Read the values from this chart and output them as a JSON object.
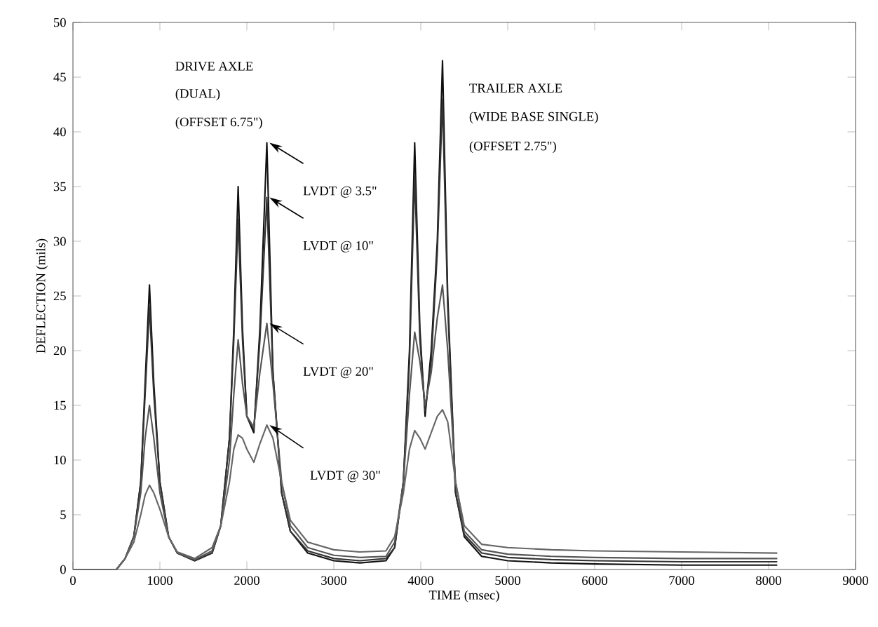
{
  "chart_data": {
    "type": "line",
    "xlabel": "TIME (msec)",
    "ylabel": "DEFLECTION (mils)",
    "annotations": [
      "DRIVE AXLE",
      "(DUAL)",
      "(OFFSET 6.75\")",
      "TRAILER AXLE",
      "(WIDE BASE SINGLE)",
      "(OFFSET 2.75\")"
    ],
    "x": [
      0,
      500,
      600,
      700,
      780,
      830,
      880,
      930,
      1000,
      1100,
      1200,
      1400,
      1600,
      1700,
      1800,
      1850,
      1900,
      1950,
      2000,
      2080,
      2150,
      2230,
      2300,
      2400,
      2500,
      2700,
      3000,
      3300,
      3600,
      3700,
      3800,
      3870,
      3930,
      3990,
      4050,
      4120,
      4190,
      4250,
      4310,
      4400,
      4500,
      4700,
      5000,
      5500,
      6000,
      7000,
      8100
    ],
    "series": [
      {
        "name": "LVDT @ 3.5\"",
        "color": "#111111",
        "values": [
          0,
          0,
          1,
          3,
          8,
          17,
          26,
          17,
          8,
          3,
          1.5,
          0.8,
          1.5,
          4,
          12,
          22,
          35,
          22,
          14,
          12.5,
          22,
          39,
          18,
          7,
          3.5,
          1.5,
          0.8,
          0.6,
          0.8,
          2,
          8,
          20,
          39,
          22,
          14,
          20,
          30,
          46.5,
          25,
          7,
          3,
          1.2,
          0.8,
          0.6,
          0.5,
          0.4,
          0.4
        ]
      },
      {
        "name": "LVDT @ 10\"",
        "color": "#333333",
        "values": [
          0,
          0,
          1,
          3,
          8,
          16,
          24,
          16,
          8,
          3,
          1.5,
          0.8,
          1.5,
          4,
          12,
          21,
          32,
          21,
          14,
          12.8,
          21,
          34,
          18,
          7,
          3.5,
          1.7,
          1,
          0.8,
          1,
          2,
          8,
          19,
          36,
          21,
          14.5,
          19,
          29,
          43,
          24,
          7,
          3.2,
          1.5,
          1.1,
          0.9,
          0.8,
          0.7,
          0.7
        ]
      },
      {
        "name": "LVDT @ 20\"",
        "color": "#555555",
        "values": [
          0,
          0,
          1,
          3,
          7,
          12,
          15,
          12,
          7,
          3,
          1.5,
          0.9,
          1.7,
          4,
          10,
          16,
          21,
          17,
          14,
          13,
          18,
          22.5,
          17,
          8,
          4,
          2,
          1.3,
          1.1,
          1.2,
          2.5,
          8,
          16,
          21.7,
          19,
          15,
          18,
          23,
          26,
          20,
          8,
          3.5,
          1.8,
          1.4,
          1.2,
          1.1,
          1,
          1
        ]
      },
      {
        "name": "LVDT @ 30\"",
        "color": "#666666",
        "values": [
          0,
          0,
          1,
          2.5,
          5,
          6.8,
          7.7,
          7,
          5.5,
          3,
          1.6,
          1,
          2,
          4,
          8,
          11,
          12.3,
          12,
          11,
          9.8,
          11.5,
          13.2,
          12,
          8,
          4.5,
          2.5,
          1.8,
          1.6,
          1.7,
          3,
          7,
          11,
          12.7,
          12,
          11,
          12.5,
          14,
          14.6,
          13.5,
          8,
          4,
          2.3,
          2,
          1.8,
          1.7,
          1.6,
          1.5
        ]
      }
    ],
    "xlim": [
      0,
      9000
    ],
    "ylim": [
      0,
      50
    ],
    "xticks": [
      0,
      1000,
      2000,
      3000,
      4000,
      5000,
      6000,
      7000,
      8000,
      9000
    ],
    "yticks": [
      0,
      5,
      10,
      15,
      20,
      25,
      30,
      35,
      40,
      45,
      50
    ],
    "grid": false,
    "legend": false,
    "marker": "none",
    "line_style": "solid"
  }
}
